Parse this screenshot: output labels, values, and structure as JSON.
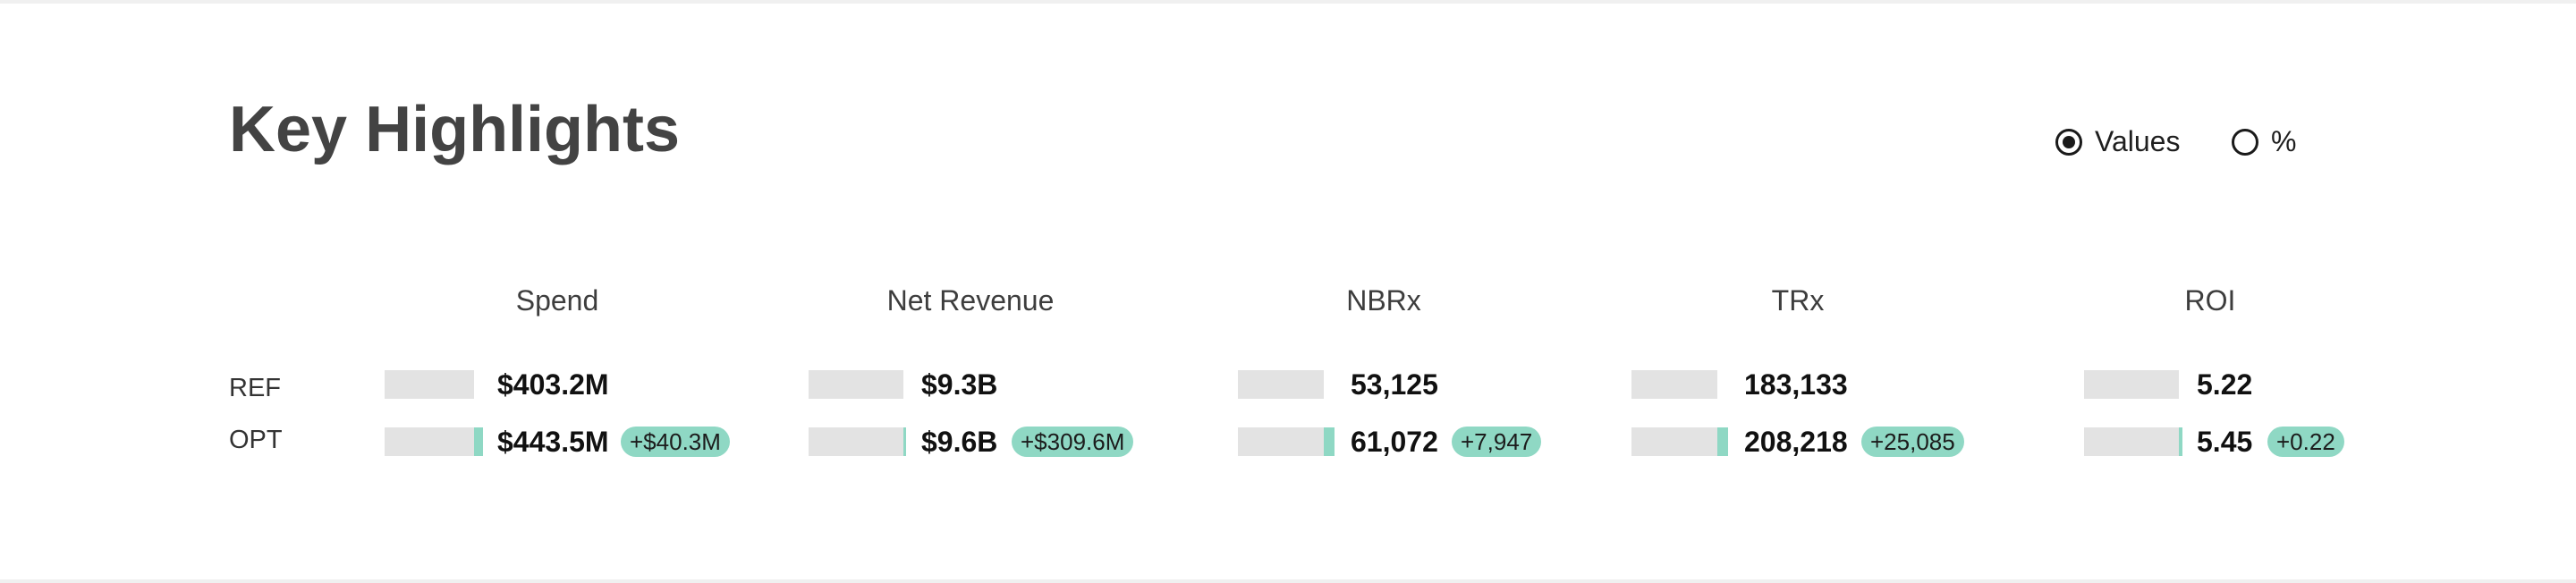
{
  "title": "Key Highlights",
  "toggle": {
    "options": [
      {
        "label": "Values",
        "checked": true
      },
      {
        "label": "%",
        "checked": false
      }
    ]
  },
  "row_labels": {
    "ref": "REF",
    "opt": "OPT"
  },
  "colors": {
    "track": "#e3e3e3",
    "delta": "#8fd8c4",
    "title": "#434343"
  },
  "metrics": [
    {
      "name": "Spend",
      "ref": "$403.2M",
      "opt": "$443.5M",
      "delta": "+$40.3M",
      "delta_fraction": 0.1
    },
    {
      "name": "Net Revenue",
      "ref": "$9.3B",
      "opt": "$9.6B",
      "delta": "+$309.6M",
      "delta_fraction": 0.03
    },
    {
      "name": "NBRx",
      "ref": "53,125",
      "opt": "61,072",
      "delta": "+7,947",
      "delta_fraction": 0.13
    },
    {
      "name": "TRx",
      "ref": "183,133",
      "opt": "208,218",
      "delta": "+25,085",
      "delta_fraction": 0.12
    },
    {
      "name": "ROI",
      "ref": "5.22",
      "opt": "5.45",
      "delta": "+0.22",
      "delta_fraction": 0.04
    }
  ]
}
